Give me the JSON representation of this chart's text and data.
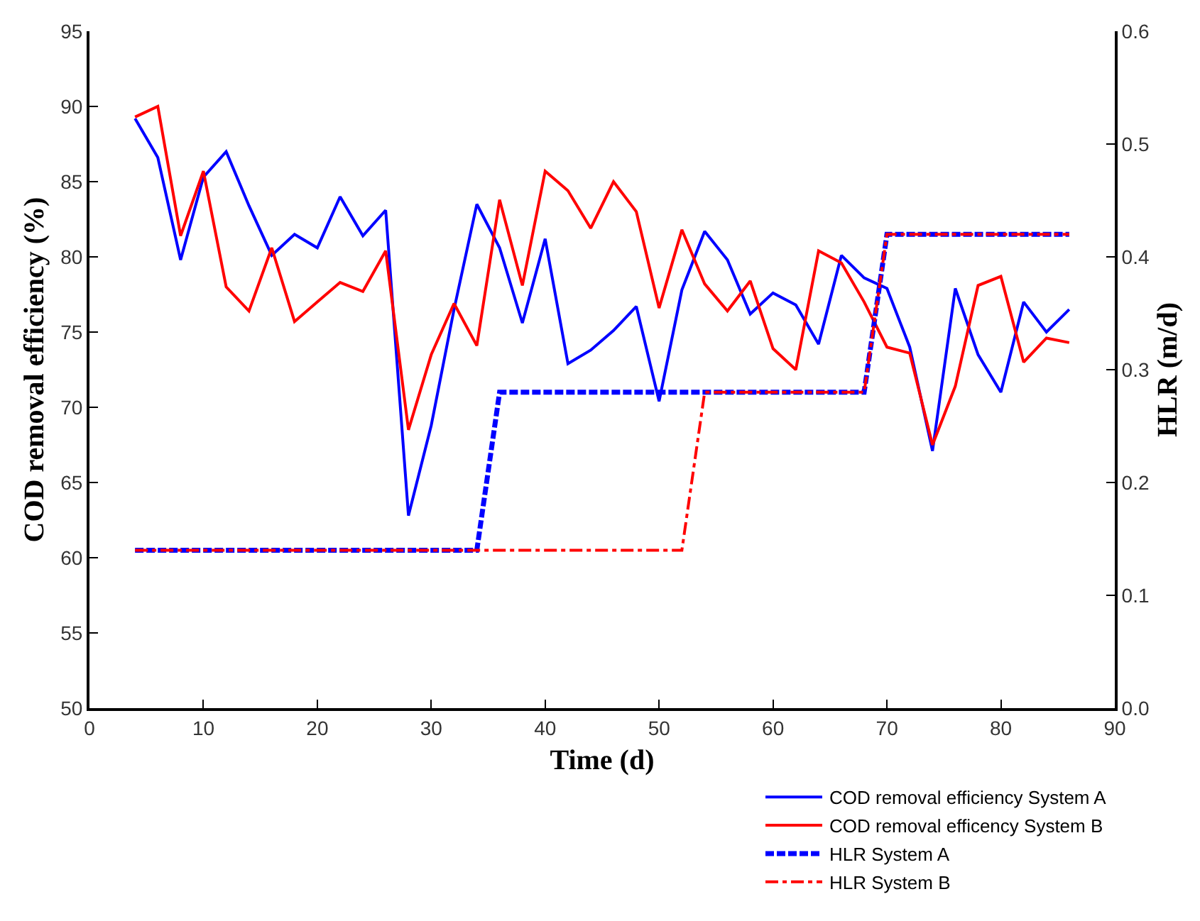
{
  "chart_data": {
    "type": "line",
    "xlabel": "Time (d)",
    "ylabel": "COD removal efficiency (%)",
    "y2label": "HLR (m/d)",
    "xlim": [
      0,
      90
    ],
    "xticks": [
      0,
      10,
      20,
      30,
      40,
      50,
      60,
      70,
      80,
      90
    ],
    "ylim": [
      50,
      95
    ],
    "yticks": [
      50,
      55,
      60,
      65,
      70,
      75,
      80,
      85,
      90,
      95
    ],
    "y2lim": [
      0,
      0.6
    ],
    "y2ticks": [
      {
        "value": 0,
        "label": "0.0"
      },
      0.1,
      0.2,
      0.3,
      0.4,
      0.5,
      0.6
    ],
    "legend": "bottom right",
    "marker": "none",
    "x": [
      4,
      6,
      8,
      10,
      12,
      14,
      16,
      18,
      20,
      22,
      24,
      26,
      28,
      30,
      32,
      34,
      36,
      38,
      40,
      42,
      44,
      46,
      48,
      50,
      52,
      54,
      56,
      58,
      60,
      62,
      64,
      66,
      68,
      70,
      72,
      74,
      76,
      78,
      80,
      82,
      84,
      86
    ],
    "series": [
      {
        "name": "COD removal efficiency System A",
        "color": "#0000ff",
        "line_style": "solid",
        "values": [
          89.2,
          86.6,
          79.8,
          85.3,
          87.0,
          83.4,
          80.1,
          81.5,
          80.6,
          84.0,
          81.4,
          83.1,
          62.8,
          68.8,
          76.5,
          83.5,
          80.6,
          75.6,
          81.2,
          72.9,
          73.8,
          75.1,
          76.7,
          70.4,
          77.8,
          81.7,
          79.8,
          76.2,
          77.6,
          76.8,
          74.2,
          80.1,
          78.6,
          77.9,
          74.0,
          67.1,
          77.9,
          73.5,
          71.0,
          77.0,
          75.0,
          76.5
        ]
      },
      {
        "name": "COD removal efficency System B",
        "color": "#ff0000",
        "line_style": "solid",
        "values": [
          89.3,
          90.0,
          81.4,
          85.7,
          78.0,
          76.4,
          80.6,
          75.7,
          77.0,
          78.3,
          77.7,
          80.4,
          68.5,
          73.5,
          76.9,
          74.1,
          83.8,
          78.1,
          85.7,
          84.4,
          81.9,
          85.0,
          83.0,
          76.6,
          81.8,
          78.2,
          76.4,
          78.4,
          73.9,
          72.5,
          80.4,
          79.6,
          77.0,
          74.0,
          73.6,
          67.5,
          71.4,
          78.1,
          78.7,
          73.0,
          74.6,
          74.3
        ]
      },
      {
        "name": "HLR System A",
        "color": "#0000ff",
        "line_style": "dashed",
        "axis": "y2",
        "x": [
          4,
          34,
          36,
          68,
          70,
          86
        ],
        "values": [
          0.14,
          0.14,
          0.28,
          0.28,
          0.42,
          0.42
        ]
      },
      {
        "name": "HLR System B",
        "color": "#ff0000",
        "line_style": "dashdot",
        "axis": "y2",
        "x": [
          4,
          52,
          54,
          68,
          70,
          86
        ],
        "values": [
          0.14,
          0.14,
          0.28,
          0.28,
          0.42,
          0.42
        ]
      }
    ]
  }
}
